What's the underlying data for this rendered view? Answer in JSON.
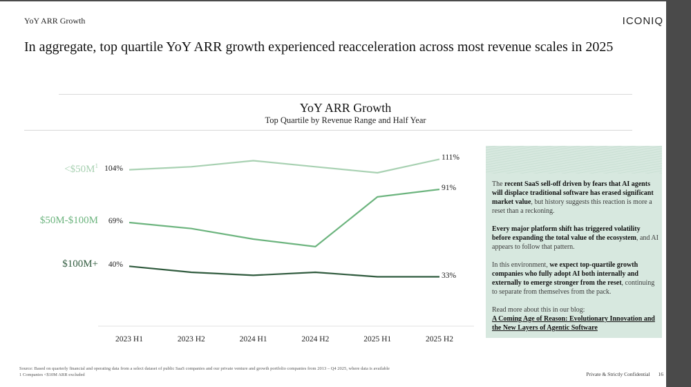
{
  "header": {
    "section_label": "YoY ARR Growth",
    "logo": "ICONIQ",
    "headline": "In aggregate, top quartile YoY ARR growth experienced reacceleration across most revenue scales in 2025"
  },
  "chart_data": {
    "type": "line",
    "title": "YoY ARR Growth",
    "subtitle": "Top Quartile by Revenue Range and Half Year",
    "xlabel": "",
    "ylabel": "",
    "categories": [
      "2023 H1",
      "2023 H2",
      "2024 H1",
      "2024 H2",
      "2025 H1",
      "2025 H2"
    ],
    "ylim": [
      25,
      120
    ],
    "grid": false,
    "legend": "inline-left",
    "series": [
      {
        "name": "<$50M",
        "superscript": "1",
        "color": "#a8d1b2",
        "values": [
          104,
          106,
          110,
          106,
          102,
          111
        ],
        "start_label": "104%",
        "end_label": "111%"
      },
      {
        "name": "$50M-$100M",
        "superscript": "",
        "color": "#6cb47e",
        "values": [
          69,
          65,
          58,
          53,
          86,
          91
        ],
        "start_label": "69%",
        "end_label": "91%"
      },
      {
        "name": "$100M+",
        "superscript": "",
        "color": "#2f5a3d",
        "values": [
          40,
          36,
          34,
          36,
          33,
          33
        ],
        "start_label": "40%",
        "end_label": "33%"
      }
    ]
  },
  "callout": {
    "paragraphs": [
      [
        {
          "text": "The ",
          "bold": false
        },
        {
          "text": "recent SaaS sell-off driven by fears that AI agents will displace traditional software has erased significant market value",
          "bold": true
        },
        {
          "text": ", but history suggests this reaction is more a reset than a reckoning.",
          "bold": false
        }
      ],
      [
        {
          "text": "Every major platform shift has triggered volatility before expanding the total value of the ecosystem",
          "bold": true
        },
        {
          "text": ", and AI appears to follow that pattern.",
          "bold": false
        }
      ],
      [
        {
          "text": "In this environment, ",
          "bold": false
        },
        {
          "text": "we expect top-quartile growth companies who fully adopt AI both internally and externally to emerge stronger from the reset",
          "bold": true
        },
        {
          "text": ", continuing to separate from themselves from the pack.",
          "bold": false
        }
      ]
    ],
    "blog_intro": "Read more about this in our blog:",
    "blog_link": "A Coming Age of Reason: Evolutionary Innovation and the New Layers of Agentic Software"
  },
  "footer": {
    "source": "Source: Based on quarterly financial and operating data from a select dataset of public SaaS companies and our private venture and growth portfolio companies from 2013 – Q4 2025, where data is available",
    "note": "1 Companies <$10M ARR excluded",
    "confidential": "Private & Strictly Confidential",
    "page_number": "16"
  }
}
